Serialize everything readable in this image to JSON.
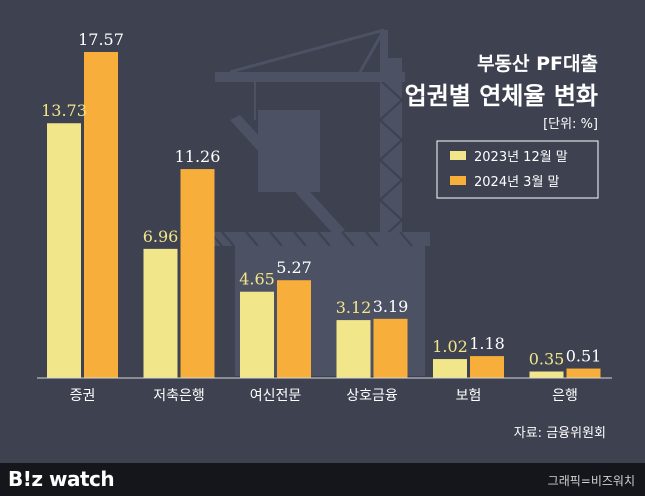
{
  "chart_data": {
    "type": "bar",
    "title_line1": "부동산 PF대출",
    "title_line2": "업권별 연체율 변화",
    "unit": "[단위: %]",
    "categories": [
      "증권",
      "저축은행",
      "여신전문",
      "상호금융",
      "보험",
      "은행"
    ],
    "series": [
      {
        "name": "2023년 12월 말",
        "values": [
          13.73,
          6.96,
          4.65,
          3.12,
          1.02,
          0.35
        ],
        "color": "#f2e68a",
        "label_color": "#f2e68a"
      },
      {
        "name": "2024년 3월 말",
        "values": [
          17.57,
          11.26,
          5.27,
          3.19,
          1.18,
          0.51
        ],
        "color": "#f7ae3b",
        "label_color": "#ffffff"
      }
    ],
    "ylim": [
      0,
      18
    ],
    "grid": false,
    "legend_position": "right",
    "source": "자료: 금융위원회"
  },
  "footer": {
    "brand": "B!z watch",
    "credit": "그래픽=비즈워치"
  },
  "colors": {
    "background": "#3d4150",
    "silhouette": "#4c5163",
    "footer_bg": "#15161b"
  }
}
